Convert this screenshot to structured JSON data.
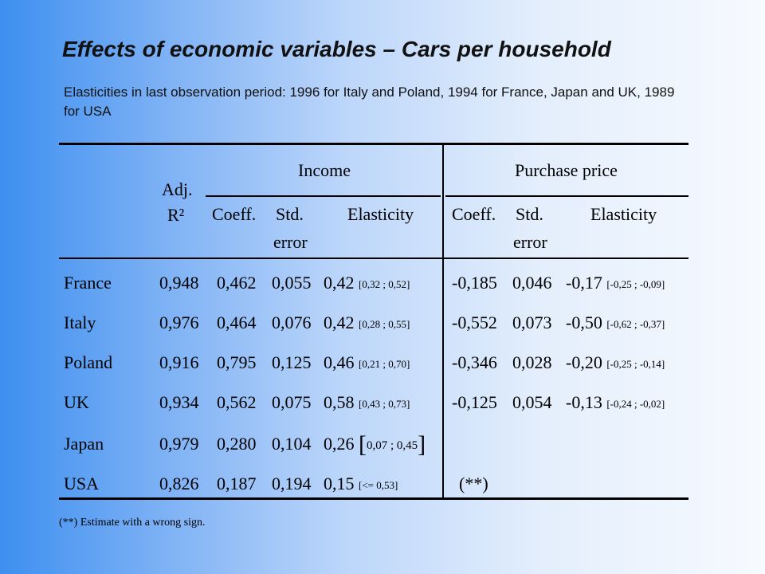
{
  "title": "Effects of economic variables – Cars per household",
  "subtitle": "Elasticities in last observation period: 1996 for Italy and Poland, 1994 for France, Japan and UK, 1989 for USA",
  "headers": {
    "adj_r2_line1": "Adj.",
    "adj_r2_line2": "R²",
    "income": "Income",
    "purchase_price": "Purchase price",
    "coeff": "Coeff.",
    "std_line1": "Std.",
    "std_line2": "error",
    "elasticity": "Elasticity"
  },
  "rows": [
    {
      "country": "France",
      "r2": "0,948",
      "inc_coeff": "0,462",
      "inc_std": "0,055",
      "inc_el": "0,42",
      "inc_ci": "[0,32 ; 0,52]",
      "pp_coeff": "-0,185",
      "pp_std": "0,046",
      "pp_el": "-0,17",
      "pp_ci": "[-0,25 ; -0,09]"
    },
    {
      "country": "Italy",
      "r2": "0,976",
      "inc_coeff": "0,464",
      "inc_std": "0,076",
      "inc_el": "0,42",
      "inc_ci": "[0,28 ; 0,55]",
      "pp_coeff": "-0,552",
      "pp_std": "0,073",
      "pp_el": "-0,50",
      "pp_ci": "[-0,62 ; -0,37]"
    },
    {
      "country": "Poland",
      "r2": "0,916",
      "inc_coeff": "0,795",
      "inc_std": "0,125",
      "inc_el": "0,46",
      "inc_ci": "[0,21 ; 0,70]",
      "pp_coeff": "-0,346",
      "pp_std": "0,028",
      "pp_el": "-0,20",
      "pp_ci": "[-0,25 ; -0,14]"
    },
    {
      "country": "UK",
      "r2": "0,934",
      "inc_coeff": "0,562",
      "inc_std": "0,075",
      "inc_el": "0,58",
      "inc_ci": "[0,43 ; 0,73]",
      "pp_coeff": "-0,125",
      "pp_std": "0,054",
      "pp_el": "-0,13",
      "pp_ci": "[-0,24 ; -0,02]"
    },
    {
      "country": "Japan",
      "r2": "0,979",
      "inc_coeff": "0,280",
      "inc_std": "0,104",
      "inc_el": "0,26",
      "inc_ci_open": "[",
      "inc_ci_inner": "0,07 ; 0,45",
      "inc_ci_close": "]"
    },
    {
      "country": "USA",
      "r2": "0,826",
      "inc_coeff": "0,187",
      "inc_std": "0,194",
      "inc_el": "0,15",
      "inc_ci": "[<= 0,53]",
      "pp_note": "(**)"
    }
  ],
  "footnote": "(**) Estimate with a wrong sign."
}
